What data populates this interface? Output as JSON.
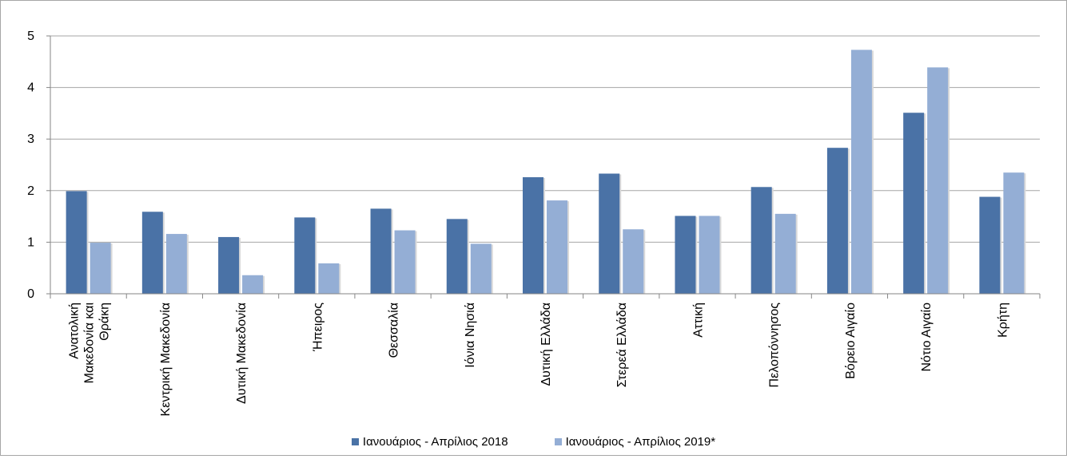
{
  "chart_data": {
    "type": "bar",
    "title": "",
    "xlabel": "",
    "ylabel": "",
    "ylim": [
      0,
      5
    ],
    "yticks": [
      0,
      1,
      2,
      3,
      4,
      5
    ],
    "grid": true,
    "legend_position": "bottom",
    "categories": [
      "Ανατολική Μακεδονία και Θράκη",
      "Κεντρική Μακεδονία",
      "Δυτική Μακεδονία",
      "Ήπειρος",
      "Θεσσαλία",
      "Ιόνια Νησιά",
      "Δυτική Ελλάδα",
      "Στερεά Ελλάδα",
      "Αττική",
      "Πελοπόννησος",
      "Βόρειο Αιγαίο",
      "Νότιο Αιγαίο",
      "Κρήτη"
    ],
    "category_lines": [
      [
        "Ανατολική",
        "Μακεδονία και",
        "Θράκη"
      ],
      [
        "Κεντρική Μακεδονία"
      ],
      [
        "Δυτική Μακεδονία"
      ],
      [
        "Ήπειρος"
      ],
      [
        "Θεσσαλία"
      ],
      [
        "Ιόνια Νησιά"
      ],
      [
        "Δυτική Ελλάδα"
      ],
      [
        "Στερεά Ελλάδα"
      ],
      [
        "Αττική"
      ],
      [
        "Πελοπόννησος"
      ],
      [
        "Βόρειο Αιγαίο"
      ],
      [
        "Νότιο Αιγαίο"
      ],
      [
        "Κρήτη"
      ]
    ],
    "series": [
      {
        "name": "Ιανουάριος - Απρίλιος 2018",
        "color": "#4a72a6",
        "values": [
          1.99,
          1.59,
          1.1,
          1.48,
          1.65,
          1.45,
          2.26,
          2.33,
          1.51,
          2.07,
          2.83,
          3.51,
          1.88
        ]
      },
      {
        "name": "Ιανουάριος - Απρίλιος 2019*",
        "color": "#94aed5",
        "values": [
          0.99,
          1.16,
          0.36,
          0.59,
          1.23,
          0.97,
          1.81,
          1.25,
          1.51,
          1.55,
          4.73,
          4.39,
          2.35
        ]
      }
    ]
  },
  "colors": {
    "gridline": "#a6a6a6",
    "axis": "#868686",
    "frame": "#a6a6a6"
  }
}
